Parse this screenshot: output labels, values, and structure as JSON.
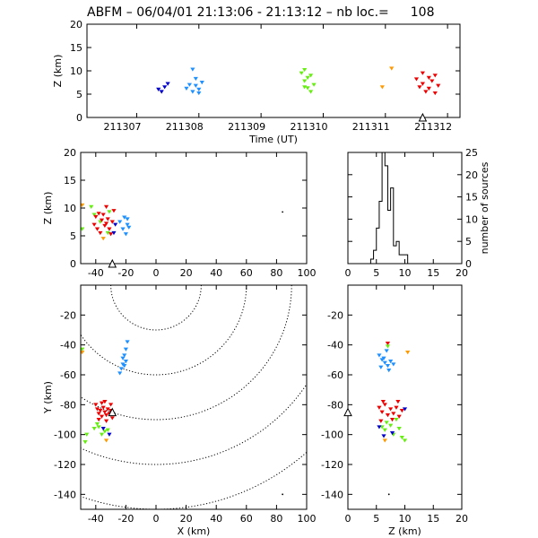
{
  "header": {
    "title_prefix": "ABFM",
    "date": "06/04/01",
    "time_range": "21:13:06 - 21:13:12",
    "count_label": "nb loc.=",
    "count": "108"
  },
  "colors": {
    "blue": "#0000cc",
    "sky": "#1e90ff",
    "green": "#66ee11",
    "orange": "#ff9900",
    "red": "#ee0000",
    "black": "#000000"
  },
  "chart_data": [
    {
      "id": "time-height",
      "type": "scatter",
      "xlabel": "Time (UT)",
      "ylabel": "Z (km)",
      "xlim": [
        211306.2,
        211312.2
      ],
      "ylim": [
        0,
        20
      ],
      "xticks": [
        "211307",
        "211308",
        "211309",
        "211310",
        "211311",
        "211312"
      ],
      "yticks": [
        "0",
        "5",
        "10",
        "15",
        "20"
      ],
      "station_marker": {
        "x": 211311.6,
        "y": 0
      },
      "series": [
        {
          "color": "blue",
          "points": [
            [
              211307.35,
              6.0
            ],
            [
              211307.4,
              5.5
            ],
            [
              211307.45,
              6.5
            ],
            [
              211307.5,
              7.2
            ]
          ]
        },
        {
          "color": "sky",
          "points": [
            [
              211307.8,
              6.2
            ],
            [
              211307.85,
              7.0
            ],
            [
              211307.9,
              10.3
            ],
            [
              211307.9,
              5.5
            ],
            [
              211307.95,
              6.8
            ],
            [
              211307.95,
              8.3
            ],
            [
              211308.0,
              6.0
            ],
            [
              211308.05,
              7.5
            ],
            [
              211308.0,
              5.2
            ]
          ]
        },
        {
          "color": "green",
          "points": [
            [
              211309.65,
              9.5
            ],
            [
              211309.7,
              10.2
            ],
            [
              211309.7,
              7.8
            ],
            [
              211309.75,
              8.5
            ],
            [
              211309.75,
              6.3
            ],
            [
              211309.8,
              9.0
            ],
            [
              211309.8,
              5.5
            ],
            [
              211309.85,
              7.0
            ],
            [
              211309.7,
              6.5
            ]
          ]
        },
        {
          "color": "orange",
          "points": [
            [
              211310.95,
              6.5
            ],
            [
              211311.1,
              10.5
            ]
          ]
        },
        {
          "color": "red",
          "points": [
            [
              211311.5,
              8.2
            ],
            [
              211311.55,
              6.5
            ],
            [
              211311.6,
              9.5
            ],
            [
              211311.6,
              7.2
            ],
            [
              211311.65,
              5.5
            ],
            [
              211311.7,
              8.5
            ],
            [
              211311.7,
              6.2
            ],
            [
              211311.75,
              7.8
            ],
            [
              211311.8,
              5.2
            ],
            [
              211311.8,
              9.0
            ],
            [
              211311.85,
              6.8
            ]
          ]
        }
      ]
    },
    {
      "id": "x-height",
      "type": "scatter",
      "xlabel": "",
      "ylabel": "Z (km)",
      "xlim": [
        -50,
        100
      ],
      "ylim": [
        0,
        20
      ],
      "xticks": [
        "-40",
        "-20",
        "0",
        "20",
        "40",
        "60",
        "80",
        "100"
      ],
      "yticks": [
        "0",
        "5",
        "10",
        "15",
        "20"
      ],
      "station_marker": {
        "x": -29,
        "y": 0
      },
      "series": [
        {
          "color": "green",
          "points": [
            [
              -49,
              6.2
            ],
            [
              -43,
              10.2
            ],
            [
              -41,
              8.8
            ],
            [
              -37,
              7.5
            ],
            [
              -32,
              5.5
            ],
            [
              -31,
              9.3
            ]
          ]
        },
        {
          "color": "orange",
          "points": [
            [
              -49,
              10.5
            ],
            [
              -35,
              4.5
            ]
          ]
        },
        {
          "color": "red",
          "points": [
            [
              -41,
              7.0
            ],
            [
              -40,
              8.4
            ],
            [
              -39,
              6.2
            ],
            [
              -38,
              9.0
            ],
            [
              -37,
              5.5
            ],
            [
              -36,
              7.8
            ],
            [
              -35,
              8.8
            ],
            [
              -34,
              6.8
            ],
            [
              -33,
              7.2
            ],
            [
              -32,
              8.0
            ],
            [
              -31,
              6.2
            ],
            [
              -30,
              5.3
            ],
            [
              -29,
              7.5
            ],
            [
              -28,
              9.5
            ],
            [
              -33,
              10.2
            ]
          ]
        },
        {
          "color": "blue",
          "points": [
            [
              -28,
              5.5
            ],
            [
              -27,
              7.0
            ]
          ]
        },
        {
          "color": "sky",
          "points": [
            [
              -24,
              7.5
            ],
            [
              -22,
              6.2
            ],
            [
              -21,
              8.3
            ],
            [
              -20,
              5.3
            ],
            [
              -19,
              7.0
            ],
            [
              -18,
              6.5
            ],
            [
              -19,
              8.0
            ]
          ]
        },
        {
          "color": "black",
          "points": [
            [
              84,
              9.3
            ]
          ]
        }
      ]
    },
    {
      "id": "height-histogram",
      "type": "bar",
      "xlabel": "",
      "ylabel": "number of sources",
      "xlim": [
        0,
        20
      ],
      "ylim": [
        0,
        25
      ],
      "xticks": [
        "0",
        "5",
        "10",
        "15",
        "20"
      ],
      "yticks": [
        "0",
        "5",
        "10",
        "15",
        "20",
        "25"
      ],
      "bin_width": 0.5,
      "bins": [
        4.0,
        4.5,
        5.0,
        5.5,
        6.0,
        6.5,
        7.0,
        7.5,
        8.0,
        8.5,
        9.0,
        9.5,
        10.0,
        10.5
      ],
      "values": [
        1,
        3,
        8,
        14,
        25,
        22,
        12,
        17,
        4,
        5,
        2,
        2,
        2,
        0
      ]
    },
    {
      "id": "plan-view",
      "type": "scatter",
      "xlabel": "X (km)",
      "ylabel": "Y (km)",
      "xlim": [
        -50,
        100
      ],
      "ylim": [
        -150,
        0
      ],
      "xticks": [
        "-40",
        "-20",
        "0",
        "20",
        "40",
        "60",
        "80",
        "100"
      ],
      "yticks": [
        "-140",
        "-120",
        "-100",
        "-80",
        "-60",
        "-40",
        "-20"
      ],
      "range_rings_center": [
        0,
        0
      ],
      "range_rings_km": [
        30,
        60,
        90,
        120,
        150
      ],
      "station_marker": {
        "x": -29,
        "y": -85
      },
      "series": [
        {
          "color": "sky",
          "points": [
            [
              -19,
              -38
            ],
            [
              -20,
              -43
            ],
            [
              -21,
              -47
            ],
            [
              -20,
              -51
            ],
            [
              -22,
              -53
            ],
            [
              -23,
              -56
            ],
            [
              -24,
              -59
            ],
            [
              -21,
              -54
            ],
            [
              -22,
              -49
            ]
          ]
        },
        {
          "color": "red",
          "points": [
            [
              -40,
              -80
            ],
            [
              -39,
              -83
            ],
            [
              -38,
              -86
            ],
            [
              -37,
              -84
            ],
            [
              -36,
              -88
            ],
            [
              -35,
              -82
            ],
            [
              -34,
              -85
            ],
            [
              -33,
              -87
            ],
            [
              -32,
              -83
            ],
            [
              -31,
              -86
            ],
            [
              -30,
              -84
            ],
            [
              -29,
              -89
            ],
            [
              -38,
              -90
            ],
            [
              -36,
              -79
            ],
            [
              -33,
              -91
            ],
            [
              -30,
              -80
            ],
            [
              -34,
              -78
            ]
          ]
        },
        {
          "color": "green",
          "points": [
            [
              -49,
              -43
            ],
            [
              -47,
              -105
            ],
            [
              -46,
              -100
            ],
            [
              -41,
              -96
            ],
            [
              -38,
              -95
            ],
            [
              -36,
              -100
            ],
            [
              -34,
              -98
            ],
            [
              -32,
              -97
            ],
            [
              -39,
              -93
            ]
          ]
        },
        {
          "color": "orange",
          "points": [
            [
              -49,
              -45
            ],
            [
              -33,
              -104
            ]
          ]
        },
        {
          "color": "blue",
          "points": [
            [
              -35,
              -96
            ],
            [
              -31,
              -100
            ]
          ]
        },
        {
          "color": "black",
          "points": [
            [
              84,
              -140
            ]
          ]
        }
      ]
    },
    {
      "id": "height-y",
      "type": "scatter",
      "xlabel": "Z (km)",
      "ylabel": "",
      "xlim": [
        0,
        20
      ],
      "ylim": [
        -150,
        0
      ],
      "xticks": [
        "0",
        "5",
        "10",
        "15",
        "20"
      ],
      "yticks": [
        "-140",
        "-120",
        "-100",
        "-80",
        "-60",
        "-40",
        "-20"
      ],
      "station_marker": {
        "x": 0,
        "y": -85
      },
      "series": [
        {
          "color": "sky",
          "points": [
            [
              5.5,
              -47
            ],
            [
              6,
              -50
            ],
            [
              6.5,
              -52
            ],
            [
              7,
              -54
            ],
            [
              7.5,
              -51
            ],
            [
              5.8,
              -55
            ],
            [
              7.2,
              -57
            ],
            [
              6.3,
              -49
            ],
            [
              8,
              -53
            ],
            [
              6.8,
              -44
            ]
          ]
        },
        {
          "color": "orange",
          "points": [
            [
              10.5,
              -45
            ],
            [
              6.5,
              -104
            ]
          ]
        },
        {
          "color": "red",
          "points": [
            [
              5.5,
              -82
            ],
            [
              6,
              -85
            ],
            [
              6.5,
              -80
            ],
            [
              7,
              -87
            ],
            [
              7.5,
              -83
            ],
            [
              8,
              -86
            ],
            [
              8.5,
              -82
            ],
            [
              9,
              -88
            ],
            [
              6.2,
              -78
            ],
            [
              7.8,
              -90
            ],
            [
              5.8,
              -91
            ],
            [
              9.5,
              -84
            ],
            [
              7,
              -39
            ],
            [
              8.8,
              -78
            ]
          ]
        },
        {
          "color": "green",
          "points": [
            [
              6,
              -95
            ],
            [
              6.5,
              -97
            ],
            [
              7.5,
              -94
            ],
            [
              8,
              -100
            ],
            [
              9,
              -96
            ],
            [
              9.5,
              -102
            ],
            [
              10,
              -104
            ],
            [
              6.8,
              -92
            ],
            [
              8.5,
              -90
            ],
            [
              7,
              -41
            ]
          ]
        },
        {
          "color": "blue",
          "points": [
            [
              5.5,
              -95
            ],
            [
              7.8,
              -99
            ],
            [
              6.3,
              -101
            ],
            [
              10,
              -83
            ]
          ]
        },
        {
          "color": "black",
          "points": [
            [
              7.2,
              -140
            ]
          ]
        }
      ]
    }
  ]
}
